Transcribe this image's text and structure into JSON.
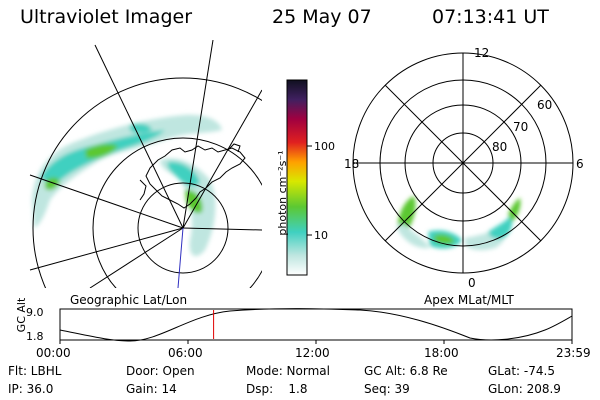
{
  "header": {
    "instrument": "Ultraviolet Imager",
    "date": "25 May 07",
    "time": "07:13:41 UT"
  },
  "geo_panel": {
    "caption": "Geographic Lat/Lon"
  },
  "colorbar": {
    "label": "photon cm⁻²s⁻¹",
    "ticks": [
      "100",
      "10"
    ]
  },
  "apex_panel": {
    "caption": "Apex MLat/MLT",
    "mlt_labels": {
      "top": "12",
      "bottom": "0",
      "left": "18",
      "right": "6"
    },
    "lat_labels": [
      "60",
      "70",
      "80"
    ]
  },
  "altitude_strip": {
    "ylabel": "GC Alt",
    "y_ticks": [
      "9.0",
      "1.8"
    ],
    "x_ticks": [
      "00:00",
      "06:00",
      "12:00",
      "18:00",
      "23:59"
    ],
    "current_time_fraction": 0.3
  },
  "status": {
    "row1": [
      {
        "text": "Flt: LBHL"
      },
      {
        "text": "Door: Open"
      },
      {
        "text": "Mode: Normal"
      },
      {
        "text": "GC Alt: 6.8 Re"
      },
      {
        "text": "GLat: -74.5"
      }
    ],
    "row2": [
      {
        "text": "IP: 36.0"
      },
      {
        "text": "Gain: 14"
      },
      {
        "text": "Dsp:    1.8"
      },
      {
        "text": "Seq: 39"
      },
      {
        "text": "GLon: 208.9"
      }
    ]
  },
  "colors": {
    "auroral_low": "#bfe6e0",
    "auroral_mid": "#3fd0c0",
    "auroral_high": "#5cc832",
    "time_marker": "#e00000"
  }
}
